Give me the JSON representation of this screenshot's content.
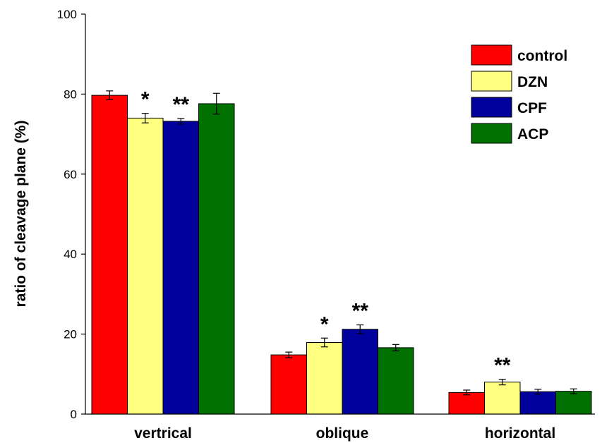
{
  "chart_data": {
    "type": "bar",
    "title": "",
    "xlabel": "",
    "ylabel": "ratio of cleavage plane (%)",
    "ylim": [
      0,
      100
    ],
    "yticks": [
      0,
      20,
      40,
      60,
      80,
      100
    ],
    "grid": false,
    "legend_position": "top-right",
    "categories": [
      "vertrical",
      "oblique",
      "horizontal"
    ],
    "series": [
      {
        "name": "control",
        "color": "#ff0000",
        "values": [
          79.7,
          14.8,
          5.4
        ],
        "errors": [
          1.1,
          0.7,
          0.6
        ],
        "significance": [
          "",
          "",
          ""
        ]
      },
      {
        "name": "DZN",
        "color": "#ffff80",
        "values": [
          74.0,
          17.9,
          8.0
        ],
        "errors": [
          1.2,
          1.1,
          0.7
        ],
        "significance": [
          "*",
          "*",
          "**"
        ]
      },
      {
        "name": "CPF",
        "color": "#00009c",
        "values": [
          73.2,
          21.2,
          5.6
        ],
        "errors": [
          0.7,
          1.1,
          0.6
        ],
        "significance": [
          "**",
          "**",
          ""
        ]
      },
      {
        "name": "ACP",
        "color": "#007000",
        "values": [
          77.6,
          16.6,
          5.7
        ],
        "errors": [
          2.6,
          0.8,
          0.6
        ],
        "significance": [
          "",
          "",
          ""
        ]
      }
    ]
  }
}
